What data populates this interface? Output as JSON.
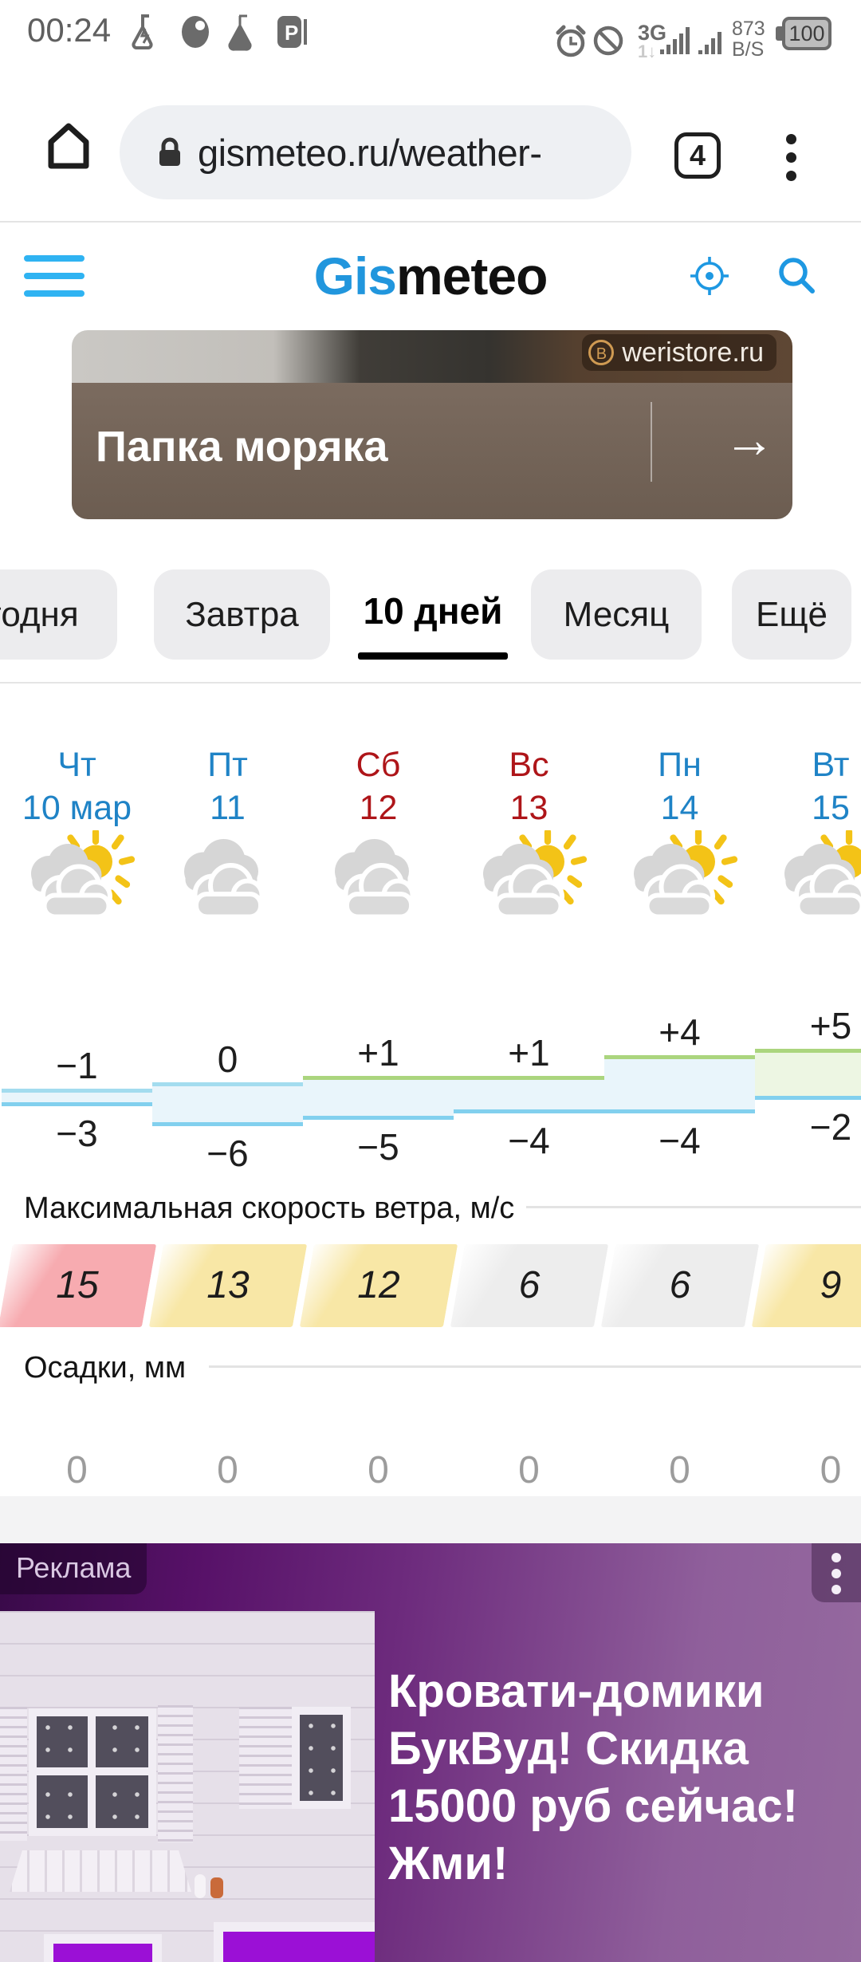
{
  "status_bar": {
    "time": "00:24",
    "network_type": "3G",
    "network_sub": "1↓",
    "data_rate_top": "873",
    "data_rate_bottom": "B/S",
    "battery": "100"
  },
  "browser": {
    "url": "gismeteo.ru/weather-",
    "tab_count": "4"
  },
  "header": {
    "logo_blue": "Gis",
    "logo_black": "meteo"
  },
  "top_ad": {
    "badge": "weristore.ru",
    "badge_logo_letter": "В",
    "title": "Папка моряка",
    "arrow": "→"
  },
  "tabs": {
    "items": [
      {
        "label": "годня"
      },
      {
        "label": "Завтра"
      },
      {
        "label": "10 дней",
        "active": true
      },
      {
        "label": "Месяц"
      },
      {
        "label": "Ещё"
      }
    ]
  },
  "forecast": {
    "days": [
      {
        "name": "Чт",
        "date": "10 мар",
        "color": "blue",
        "icon": "cloud-sun"
      },
      {
        "name": "Пт",
        "date": "11",
        "color": "blue",
        "icon": "clouds"
      },
      {
        "name": "Сб",
        "date": "12",
        "color": "red",
        "icon": "clouds"
      },
      {
        "name": "Вс",
        "date": "13",
        "color": "red",
        "icon": "cloud-sun"
      },
      {
        "name": "Пн",
        "date": "14",
        "color": "blue",
        "icon": "cloud-sun"
      },
      {
        "name": "Вт",
        "date": "15",
        "color": "blue",
        "icon": "cloud-sun"
      }
    ],
    "temp_max_labels": [
      "−1",
      "0",
      "+1",
      "+1",
      "+4",
      "+5"
    ],
    "temp_min_labels": [
      "−3",
      "−6",
      "−5",
      "−4",
      "−4",
      "−2"
    ],
    "wind": {
      "label": "Максимальная скорость ветра, м/с",
      "values": [
        "15",
        "13",
        "12",
        "6",
        "6",
        "9"
      ],
      "levels": [
        "high",
        "mid",
        "mid",
        "low",
        "low",
        "mid"
      ]
    },
    "precip": {
      "label": "Осадки, мм",
      "values": [
        "0",
        "0",
        "0",
        "0",
        "0",
        "0"
      ]
    }
  },
  "chart_data": {
    "type": "area",
    "style": "stepped-band",
    "categories": [
      "Чт 10 мар",
      "Пт 11",
      "Сб 12",
      "Вс 13",
      "Пн 14",
      "Вт 15"
    ],
    "series": [
      {
        "name": "temp_max",
        "values": [
          -1,
          0,
          1,
          1,
          4,
          5
        ]
      },
      {
        "name": "temp_min",
        "values": [
          -3,
          -6,
          -5,
          -4,
          -4,
          -2
        ]
      }
    ],
    "ylim": [
      -7,
      6
    ],
    "grid": false,
    "legend": "none"
  },
  "bottom_ad": {
    "tag": "Реклама",
    "lines": [
      "Кровати-домики",
      "БукВуд! Скидка",
      "15000 руб сейчас!",
      "Жми!"
    ]
  },
  "colors": {
    "accent_blue": "#2fb3f2",
    "logo_blue": "#2196dd",
    "icon_blue": "#1e98e2",
    "day_blue": "#1f83c6",
    "day_red": "#ae1519",
    "chart_fill_blue": "#e9f5fb",
    "chart_fill_green": "#edf6e3",
    "chart_line_warm": "#abd57e",
    "chart_line_cold": "#a3dcef",
    "chart_line_bottom": "#82d0ee",
    "wind_high": "#f7abb0",
    "wind_mid": "#f8e7a6",
    "wind_low": "#ededed",
    "sun_yellow": "#f3c317",
    "cloud_gray": "#d6d6d6",
    "purple_window": "#9b10d6"
  }
}
